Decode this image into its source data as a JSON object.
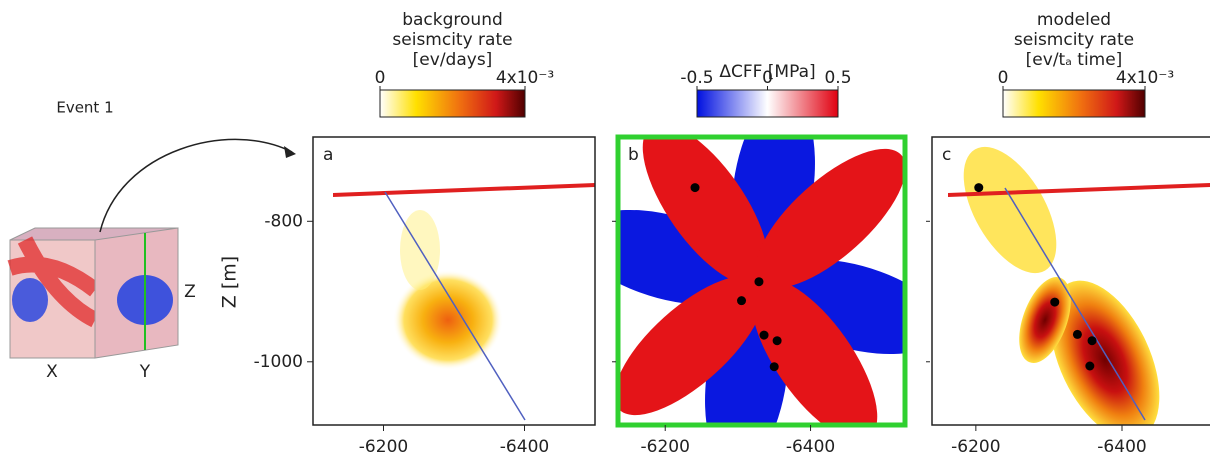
{
  "inset": {
    "title": "Event 1",
    "axis_labels": [
      "X",
      "Y",
      "Z"
    ]
  },
  "y_label": "Z [m]",
  "chart_data": [
    {
      "type": "map",
      "panel_label": "a",
      "colorbar": {
        "title_lines": [
          "background",
          "seismcity rate",
          "[ev/days]"
        ],
        "lim": [
          0,
          0.004
        ],
        "ticks": [
          0,
          {
            "value": 0.004,
            "label": "4x10⁻³"
          }
        ]
      },
      "xlim": [
        -6100,
        -6500
      ],
      "xticks": [
        -6200,
        -6400
      ],
      "ylim": [
        -1090,
        -680
      ],
      "yticks": [
        -800,
        -1000
      ]
    },
    {
      "type": "map",
      "panel_label": "b",
      "colorbar": {
        "title_lines": [
          "ΔCFF [MPa]"
        ],
        "lim": [
          -0.5,
          0.5
        ],
        "ticks": [
          -0.5,
          0,
          0.5
        ]
      },
      "xlim": [
        -6135,
        -6530
      ],
      "xticks": [
        -6200,
        -6400
      ],
      "ylim": [
        -1090,
        -680
      ],
      "yticks": [
        -800,
        -1000
      ],
      "points": {
        "x": [
          -6241,
          -6329,
          -6305,
          -6336,
          -6354,
          -6350
        ],
        "y": [
          -752,
          -886,
          -913,
          -962,
          -970,
          -1007
        ]
      }
    },
    {
      "type": "map",
      "panel_label": "c",
      "colorbar": {
        "title_lines": [
          "modeled",
          "seismcity rate",
          "[ev/tₐ time]"
        ],
        "lim": [
          0,
          0.004
        ],
        "ticks": [
          0,
          {
            "value": 0.004,
            "label": "4x10⁻³"
          }
        ]
      },
      "xlim": [
        -6140,
        -6530
      ],
      "xticks": [
        -6200,
        -6400
      ],
      "ylim": [
        -1090,
        -680
      ],
      "yticks": [
        -800,
        -1000
      ],
      "points": {
        "x": [
          -6204,
          -6308,
          -6339,
          -6359,
          -6356
        ],
        "y": [
          -752,
          -915,
          -961,
          -970,
          -1006
        ]
      }
    }
  ]
}
